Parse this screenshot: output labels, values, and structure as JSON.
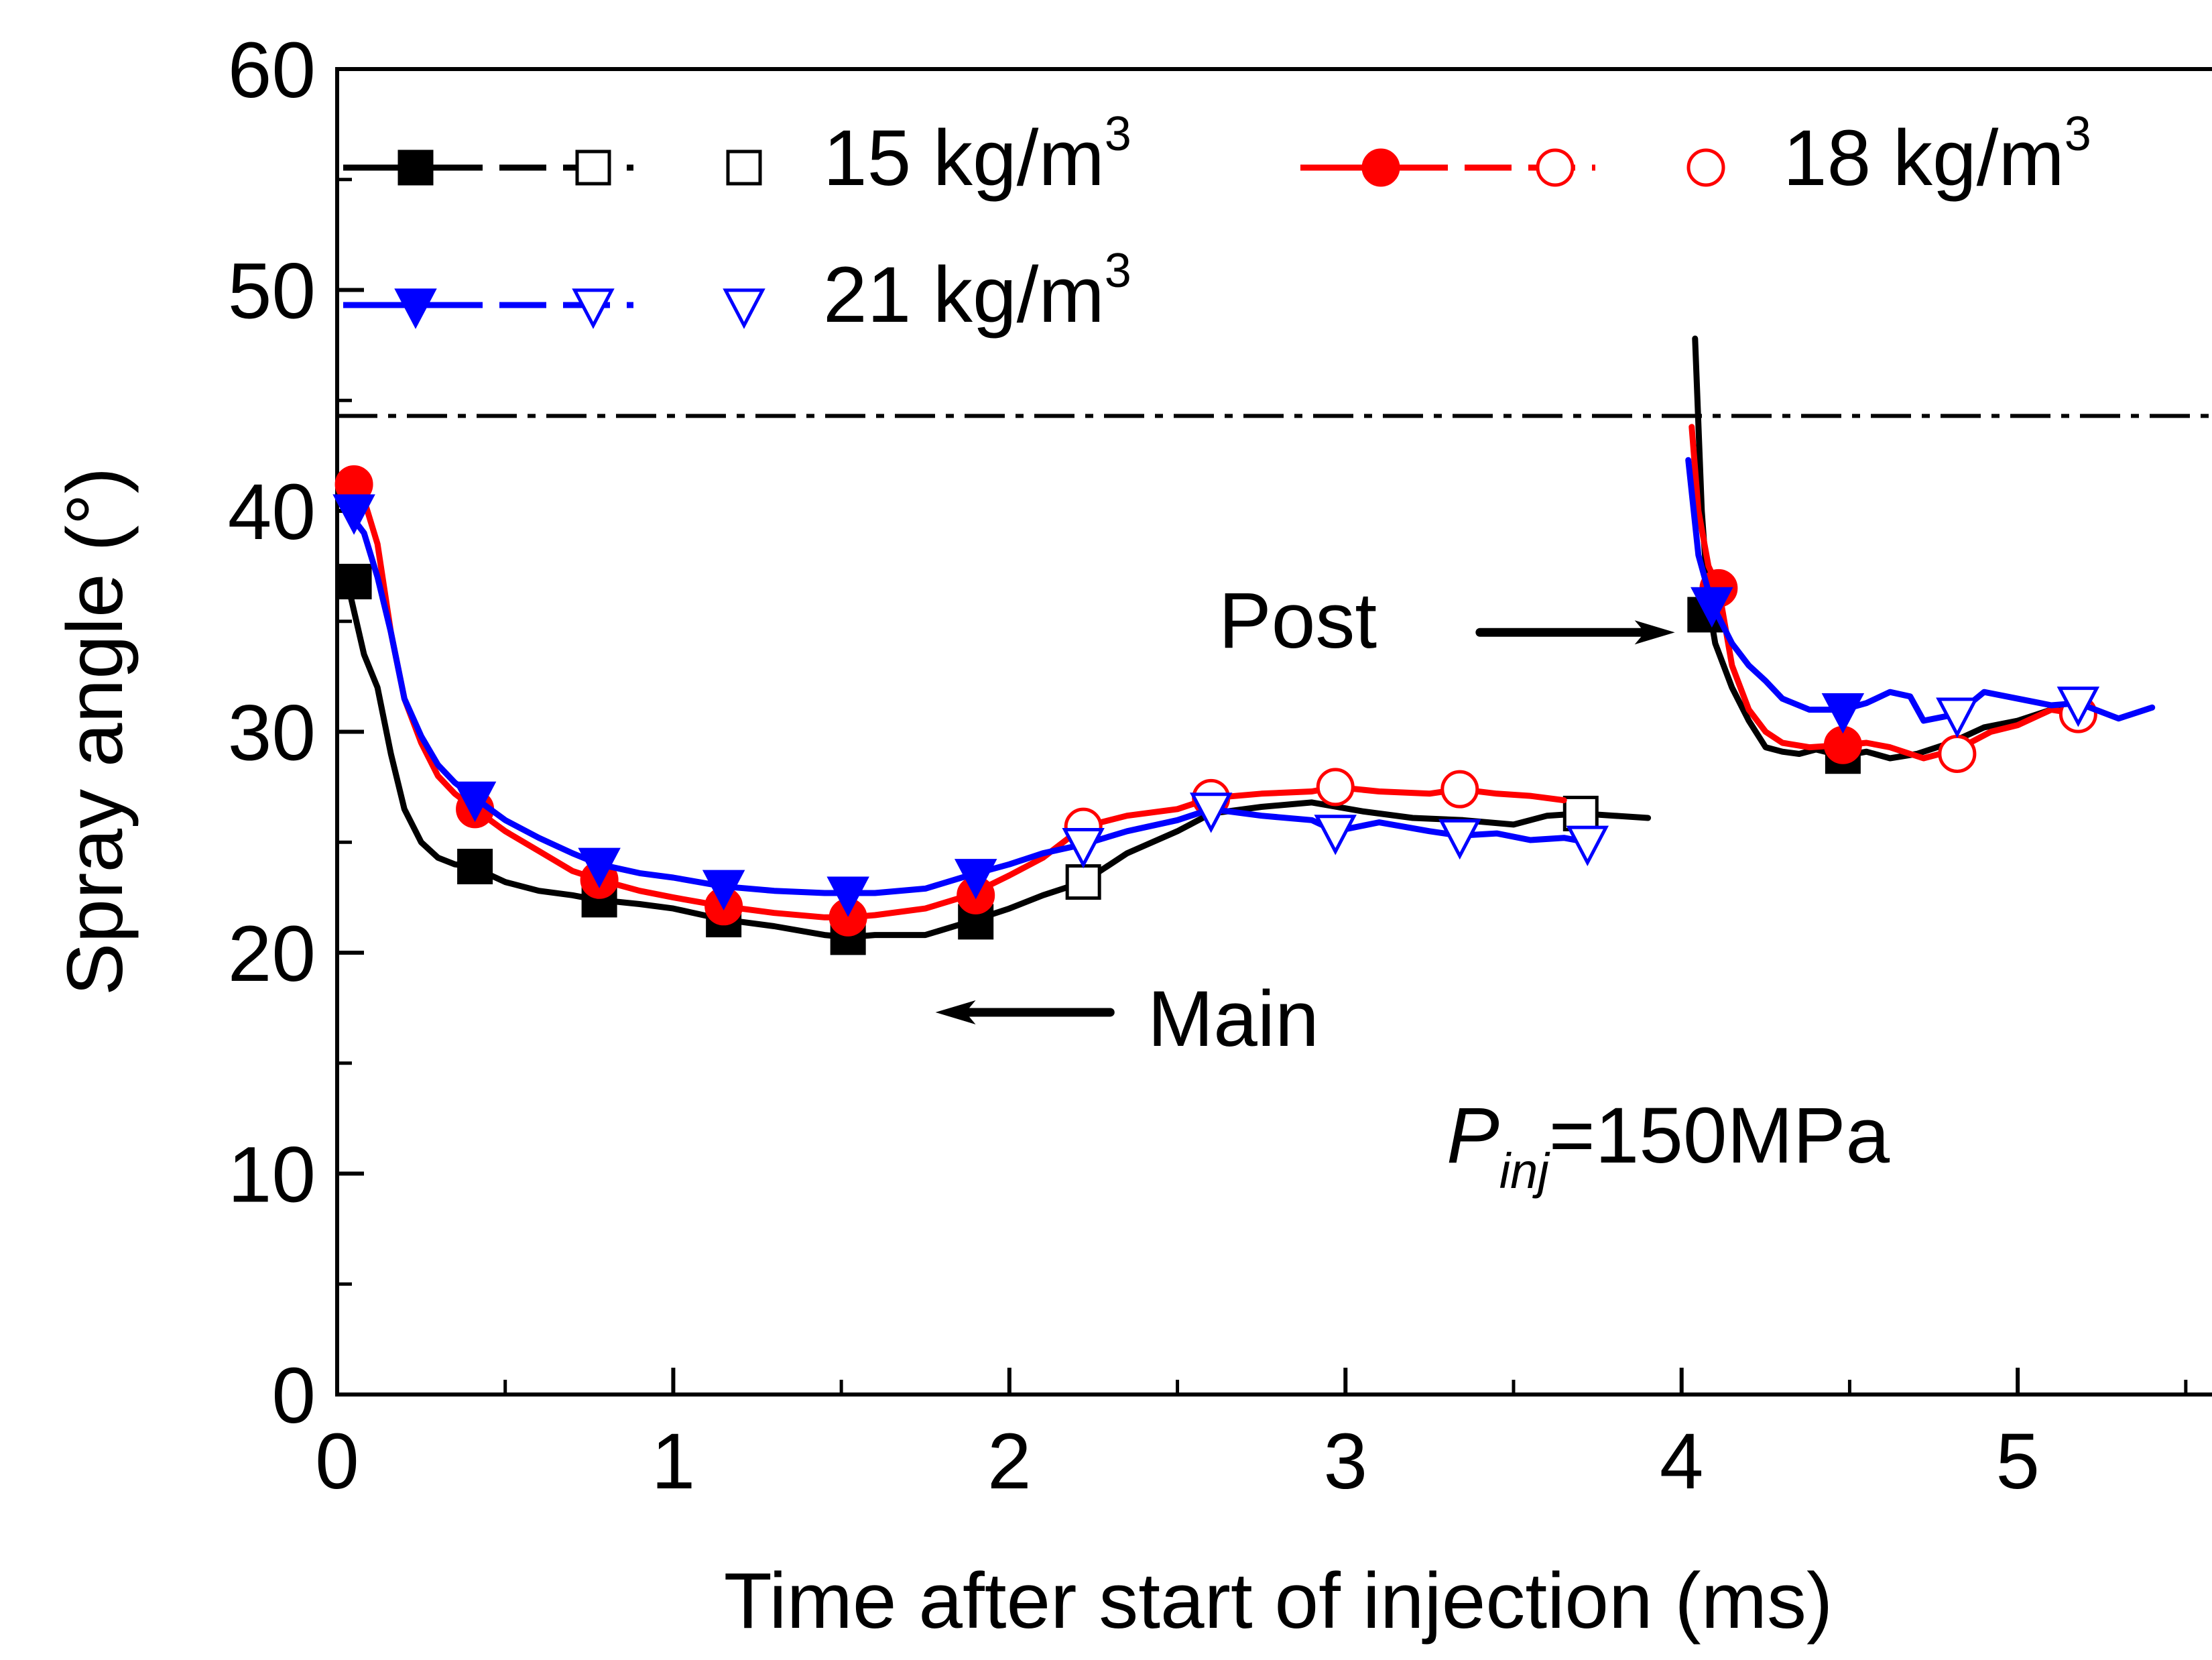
{
  "chart_data": {
    "type": "line",
    "title": "",
    "xlabel": "Time after start of injection (ms)",
    "ylabel": "Spray angle (°)",
    "xlim": [
      0,
      5.6
    ],
    "ylim": [
      0,
      60
    ],
    "xticks": [
      0,
      1,
      2,
      3,
      4,
      5
    ],
    "yticks": [
      0,
      10,
      20,
      30,
      40,
      50,
      60
    ],
    "xtick_labels": [
      "0",
      "1",
      "2",
      "3",
      "4",
      "5"
    ],
    "ytick_labels": [
      "0",
      "10",
      "20",
      "30",
      "40",
      "50",
      "60"
    ],
    "grid": false,
    "legend": {
      "position": "top",
      "entries": [
        {
          "label_main": "15 kg/m",
          "label_sup": "3",
          "color": "#000000",
          "marker": "square"
        },
        {
          "label_main": "18 kg/m",
          "label_sup": "3",
          "color": "#ff0000",
          "marker": "circle"
        },
        {
          "label_main": "21 kg/m",
          "label_sup": "3",
          "color": "#0000ff",
          "marker": "triangle-down"
        }
      ]
    },
    "reference_line": {
      "y": 44.3,
      "style": "dash-dot",
      "color": "#000000"
    },
    "annotations": {
      "main_label": "Main",
      "post_label": "Post",
      "pinj_prefix": "P",
      "pinj_sub": "inj",
      "pinj_value": "=150MPa",
      "main_arrow": {
        "from": [
          2.3,
          17.3
        ],
        "to": [
          1.78,
          17.3
        ]
      },
      "post_arrow": {
        "from": [
          3.4,
          34.5
        ],
        "to": [
          3.98,
          34.5
        ]
      }
    },
    "series": [
      {
        "name": "15 kg/m3",
        "color": "#000000",
        "marker": "square",
        "main_line": {
          "x": [
            0.03,
            0.08,
            0.12,
            0.16,
            0.2,
            0.25,
            0.3,
            0.35,
            0.4,
            0.5,
            0.6,
            0.7,
            0.77,
            0.9,
            1.0,
            1.15,
            1.3,
            1.45,
            1.52,
            1.6,
            1.75,
            1.88,
            2.0,
            2.1,
            2.22,
            2.35,
            2.5,
            2.6,
            2.75,
            2.9,
            3.05,
            3.2,
            3.35,
            3.5,
            3.6,
            3.7,
            3.8,
            3.9
          ],
          "y": [
            36.8,
            33.5,
            32,
            29,
            26.5,
            25,
            24.3,
            24,
            23.9,
            23.2,
            22.8,
            22.6,
            22.4,
            22.2,
            22.0,
            21.5,
            21.2,
            20.8,
            20.7,
            20.8,
            20.8,
            21.4,
            22.0,
            22.6,
            23.2,
            24.5,
            25.5,
            26.3,
            26.6,
            26.8,
            26.4,
            26.1,
            26.0,
            25.8,
            26.2,
            26.3,
            26.2,
            26.1
          ]
        },
        "post_line": {
          "x": [
            4.04,
            4.06,
            4.08,
            4.1,
            4.15,
            4.2,
            4.25,
            4.3,
            4.35,
            4.4,
            4.48,
            4.55,
            4.62,
            4.7,
            4.8,
            4.9,
            5.0,
            5.1,
            5.15
          ],
          "y": [
            47.8,
            40,
            35.8,
            34,
            32,
            30.5,
            29.3,
            29.1,
            29.0,
            29.2,
            28.9,
            29.1,
            28.8,
            29.0,
            29.5,
            30.2,
            30.5,
            31.0,
            31.0
          ]
        },
        "filled_markers": [
          [
            0.05,
            36.8
          ],
          [
            0.41,
            23.9
          ],
          [
            0.78,
            22.4
          ],
          [
            1.15,
            21.5
          ],
          [
            1.52,
            20.7
          ],
          [
            1.9,
            21.4
          ],
          [
            4.07,
            35.3
          ],
          [
            4.48,
            28.9
          ]
        ],
        "open_markers_main": [
          [
            2.22,
            23.2
          ],
          [
            3.7,
            26.3
          ]
        ],
        "open_markers_post": []
      },
      {
        "name": "18 kg/m3",
        "color": "#ff0000",
        "marker": "circle",
        "main_line": {
          "x": [
            0.03,
            0.08,
            0.12,
            0.16,
            0.2,
            0.25,
            0.3,
            0.35,
            0.41,
            0.5,
            0.6,
            0.7,
            0.78,
            0.9,
            1.0,
            1.15,
            1.3,
            1.45,
            1.52,
            1.6,
            1.75,
            1.88,
            2.0,
            2.1,
            2.22,
            2.35,
            2.5,
            2.6,
            2.75,
            2.9,
            2.97,
            3.1,
            3.25,
            3.34,
            3.45,
            3.55,
            3.65
          ],
          "y": [
            41.2,
            40.5,
            38.5,
            34.5,
            31.5,
            29.5,
            28,
            27.2,
            26.5,
            25.5,
            24.6,
            23.7,
            23.3,
            22.8,
            22.5,
            22.1,
            21.8,
            21.6,
            21.6,
            21.7,
            22.0,
            22.6,
            23.5,
            24.3,
            25.7,
            26.2,
            26.5,
            27.0,
            27.2,
            27.3,
            27.5,
            27.3,
            27.2,
            27.4,
            27.2,
            27.1,
            26.9
          ]
        },
        "post_line": {
          "x": [
            4.03,
            4.05,
            4.08,
            4.11,
            4.15,
            4.2,
            4.25,
            4.3,
            4.38,
            4.48,
            4.55,
            4.62,
            4.68,
            4.72,
            4.82,
            4.92,
            5.0,
            5.1,
            5.18
          ],
          "y": [
            43.8,
            40,
            37.5,
            36.5,
            33,
            31,
            30,
            29.5,
            29.3,
            29.4,
            29.5,
            29.3,
            29.0,
            28.8,
            29.2,
            30.0,
            30.3,
            31.0,
            30.8
          ]
        },
        "filled_markers": [
          [
            0.05,
            41.2
          ],
          [
            0.41,
            26.5
          ],
          [
            0.78,
            23.3
          ],
          [
            1.15,
            22.1
          ],
          [
            1.52,
            21.6
          ],
          [
            1.9,
            22.6
          ],
          [
            4.11,
            36.5
          ],
          [
            4.48,
            29.4
          ]
        ],
        "open_markers_main": [
          [
            2.22,
            25.7
          ],
          [
            2.6,
            27.0
          ],
          [
            2.97,
            27.5
          ],
          [
            3.34,
            27.4
          ]
        ],
        "open_markers_post": [
          [
            4.82,
            29.0
          ],
          [
            5.18,
            30.8
          ]
        ]
      },
      {
        "name": "21 kg/m3",
        "color": "#0000ff",
        "marker": "triangle-down",
        "main_line": {
          "x": [
            0.03,
            0.08,
            0.12,
            0.16,
            0.2,
            0.25,
            0.3,
            0.35,
            0.41,
            0.5,
            0.6,
            0.7,
            0.78,
            0.9,
            1.0,
            1.15,
            1.3,
            1.45,
            1.52,
            1.6,
            1.75,
            1.88,
            2.0,
            2.1,
            2.22,
            2.35,
            2.5,
            2.6,
            2.75,
            2.9,
            2.97,
            3.1,
            3.25,
            3.34,
            3.45,
            3.55,
            3.65,
            3.72
          ],
          "y": [
            40.0,
            39.0,
            37.0,
            34.5,
            31.5,
            29.8,
            28.5,
            27.7,
            27.0,
            26.0,
            25.2,
            24.5,
            24.0,
            23.6,
            23.4,
            23.0,
            22.8,
            22.7,
            22.7,
            22.7,
            22.9,
            23.5,
            24.0,
            24.5,
            24.9,
            25.5,
            26.0,
            26.5,
            26.2,
            26.0,
            25.5,
            25.9,
            25.5,
            25.3,
            25.4,
            25.1,
            25.2,
            25.0
          ]
        },
        "post_line": {
          "x": [
            4.02,
            4.05,
            4.09,
            4.15,
            4.2,
            4.25,
            4.3,
            4.38,
            4.48,
            4.55,
            4.62,
            4.68,
            4.72,
            4.82,
            4.9,
            5.0,
            5.1,
            5.18,
            5.3,
            5.4
          ],
          "y": [
            42.3,
            38,
            35.8,
            34,
            33,
            32.3,
            31.5,
            31.0,
            31.0,
            31.3,
            31.8,
            31.6,
            30.5,
            30.8,
            31.8,
            31.5,
            31.2,
            31.3,
            30.6,
            31.1
          ]
        },
        "filled_markers": [
          [
            0.05,
            40.0
          ],
          [
            0.41,
            27.0
          ],
          [
            0.78,
            24.0
          ],
          [
            1.15,
            23.0
          ],
          [
            1.52,
            22.7
          ],
          [
            1.9,
            23.5
          ],
          [
            4.09,
            35.8
          ],
          [
            4.48,
            31.0
          ]
        ],
        "open_markers_main": [
          [
            2.22,
            24.9
          ],
          [
            2.6,
            26.5
          ],
          [
            2.97,
            25.5
          ],
          [
            3.34,
            25.3
          ],
          [
            3.72,
            25.0
          ]
        ],
        "open_markers_post": [
          [
            4.82,
            30.8
          ],
          [
            5.18,
            31.3
          ]
        ]
      }
    ]
  }
}
